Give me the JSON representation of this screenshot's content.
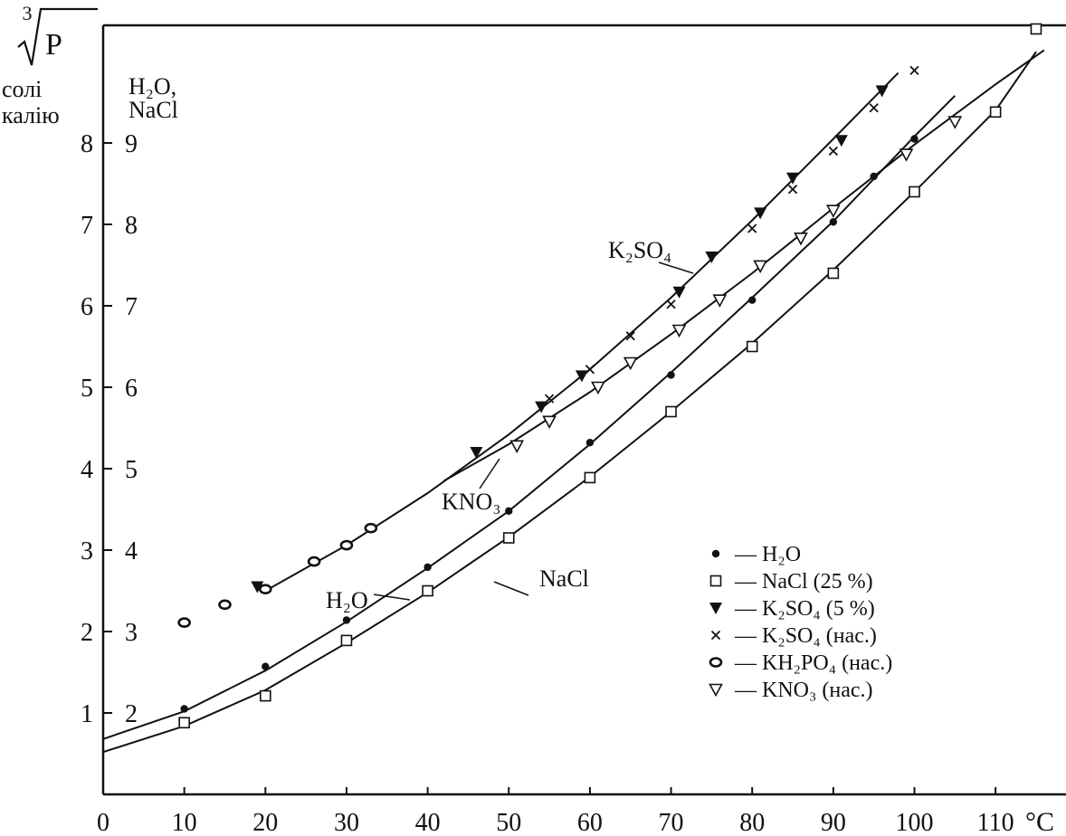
{
  "chart_data": {
    "type": "scatter",
    "xlabel": "°C",
    "ylabel_root_index": "3",
    "ylabel_radicand": "P",
    "ylabel_left_lines": [
      "солі",
      "калію"
    ],
    "ylabel_right_lines": [
      "H₂O,",
      "NaCl"
    ],
    "x_ticks": [
      "0",
      "10",
      "20",
      "30",
      "40",
      "50",
      "60",
      "70",
      "80",
      "90",
      "100",
      "110"
    ],
    "y_ticks_left": [
      "1",
      "2",
      "3",
      "4",
      "5",
      "6",
      "7",
      "8"
    ],
    "y_ticks_right": [
      "2",
      "3",
      "4",
      "5",
      "6",
      "7",
      "8",
      "9"
    ],
    "xlim": [
      0,
      120
    ],
    "ylim_left": [
      0,
      10
    ],
    "ylim_right": [
      1,
      11
    ],
    "grid": false,
    "legend_position": "bottom-right",
    "legend": [
      {
        "marker": "dot",
        "label": "— H₂O"
      },
      {
        "marker": "square",
        "label": "— NaCl (25 %)"
      },
      {
        "marker": "triangle-down-filled",
        "label": "— K₂SO₄ (5 %)"
      },
      {
        "marker": "cross",
        "label": "— K₂SO₄ (нас.)"
      },
      {
        "marker": "ring",
        "label": "— KH₂PO₄ (нас.)"
      },
      {
        "marker": "triangle-down-open",
        "label": "— KNO₃ (нас.)"
      }
    ],
    "annotations": [
      "K₂SO₄",
      "KNO₃",
      "H₂O",
      "NaCl"
    ],
    "series": [
      {
        "marker": "dot",
        "axis": "right",
        "points": [
          [
            10,
            2.05
          ],
          [
            20,
            2.57
          ],
          [
            30,
            3.14
          ],
          [
            40,
            3.79
          ],
          [
            50,
            4.48
          ],
          [
            60,
            5.32
          ],
          [
            70,
            6.15
          ],
          [
            80,
            7.07
          ],
          [
            90,
            8.03
          ],
          [
            95,
            8.59
          ],
          [
            100,
            9.05
          ]
        ]
      },
      {
        "marker": "square",
        "axis": "right",
        "points": [
          [
            10,
            1.88
          ],
          [
            20,
            2.21
          ],
          [
            30,
            2.89
          ],
          [
            40,
            3.5
          ],
          [
            50,
            4.15
          ],
          [
            60,
            4.89
          ],
          [
            70,
            5.7
          ],
          [
            80,
            6.5
          ],
          [
            90,
            7.4
          ],
          [
            100,
            8.4
          ],
          [
            110,
            9.38
          ],
          [
            115,
            10.4
          ]
        ]
      },
      {
        "marker": "triangle-down-filled",
        "axis": "left",
        "points": [
          [
            19,
            2.55
          ],
          [
            46,
            4.2
          ],
          [
            54,
            4.76
          ],
          [
            59,
            5.14
          ],
          [
            71,
            6.17
          ],
          [
            75,
            6.6
          ],
          [
            81,
            7.14
          ],
          [
            85,
            7.57
          ],
          [
            91,
            8.03
          ],
          [
            96,
            8.64
          ]
        ]
      },
      {
        "marker": "cross",
        "axis": "left",
        "points": [
          [
            55,
            4.86
          ],
          [
            60,
            5.22
          ],
          [
            65,
            5.63
          ],
          [
            70,
            6.02
          ],
          [
            80,
            6.95
          ],
          [
            85,
            7.43
          ],
          [
            90,
            7.9
          ],
          [
            95,
            8.43
          ],
          [
            100,
            8.89
          ]
        ]
      },
      {
        "marker": "ring",
        "axis": "left",
        "points": [
          [
            10,
            2.11
          ],
          [
            15,
            2.33
          ],
          [
            20,
            2.52
          ],
          [
            26,
            2.86
          ],
          [
            30,
            3.06
          ],
          [
            33,
            3.27
          ]
        ]
      },
      {
        "marker": "triangle-down-open",
        "axis": "left",
        "points": [
          [
            51,
            4.28
          ],
          [
            55,
            4.58
          ],
          [
            61,
            5.0
          ],
          [
            65,
            5.3
          ],
          [
            71,
            5.7
          ],
          [
            76,
            6.07
          ],
          [
            81,
            6.49
          ],
          [
            86,
            6.83
          ],
          [
            90,
            7.17
          ],
          [
            99,
            7.86
          ],
          [
            105,
            8.26
          ]
        ]
      }
    ],
    "curves": [
      {
        "name": "K₂SO₄",
        "axis": "left",
        "points": [
          [
            20,
            2.5
          ],
          [
            30,
            3.06
          ],
          [
            40,
            3.7
          ],
          [
            50,
            4.42
          ],
          [
            60,
            5.22
          ],
          [
            70,
            6.1
          ],
          [
            80,
            7.05
          ],
          [
            90,
            8.05
          ],
          [
            98,
            8.86
          ]
        ]
      },
      {
        "name": "KNO₃",
        "axis": "left",
        "points": [
          [
            42,
            3.85
          ],
          [
            50,
            4.3
          ],
          [
            60,
            4.94
          ],
          [
            70,
            5.65
          ],
          [
            80,
            6.4
          ],
          [
            90,
            7.2
          ],
          [
            100,
            7.98
          ],
          [
            110,
            8.72
          ],
          [
            116,
            9.14
          ]
        ]
      },
      {
        "name": "H₂O",
        "axis": "right",
        "points": [
          [
            0,
            1.68
          ],
          [
            10,
            2.02
          ],
          [
            20,
            2.52
          ],
          [
            30,
            3.12
          ],
          [
            40,
            3.78
          ],
          [
            50,
            4.48
          ],
          [
            60,
            5.3
          ],
          [
            70,
            6.18
          ],
          [
            80,
            7.1
          ],
          [
            90,
            8.04
          ],
          [
            100,
            9.08
          ],
          [
            105,
            9.58
          ]
        ]
      },
      {
        "name": "NaCl",
        "axis": "right",
        "points": [
          [
            0,
            1.52
          ],
          [
            10,
            1.84
          ],
          [
            20,
            2.28
          ],
          [
            30,
            2.86
          ],
          [
            40,
            3.48
          ],
          [
            50,
            4.16
          ],
          [
            60,
            4.9
          ],
          [
            70,
            5.7
          ],
          [
            80,
            6.54
          ],
          [
            90,
            7.44
          ],
          [
            100,
            8.4
          ],
          [
            110,
            9.4
          ],
          [
            115,
            10.12
          ]
        ]
      }
    ]
  }
}
